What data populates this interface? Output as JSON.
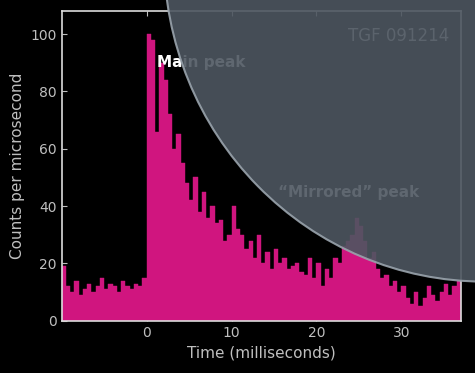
{
  "chart_data": {
    "type": "histogram",
    "title": "TGF 091214",
    "xlabel": "Time (milliseconds)",
    "ylabel": "Counts per microsecond",
    "annotations": [
      "Main peak",
      "“Mirrored” peak"
    ],
    "bins": [
      -10,
      -9.5,
      -9,
      -8.5,
      -8,
      -7.5,
      -7,
      -6.5,
      -6,
      -5.5,
      -5,
      -4.5,
      -4,
      -3.5,
      -3,
      -2.5,
      -2,
      -1.5,
      -1,
      -0.5,
      0,
      0.5,
      1,
      1.5,
      2,
      2.5,
      3,
      3.5,
      4,
      4.5,
      5,
      5.5,
      6,
      6.5,
      7,
      7.5,
      8,
      8.5,
      9,
      9.5,
      10,
      10.5,
      11,
      11.5,
      12,
      12.5,
      13,
      13.5,
      14,
      14.5,
      15,
      15.5,
      16,
      16.5,
      17,
      17.5,
      18,
      18.5,
      19,
      19.5,
      20,
      20.5,
      21,
      21.5,
      22,
      22.5,
      23,
      23.5,
      24,
      24.5,
      25,
      25.5,
      26,
      26.5,
      27,
      27.5,
      28,
      28.5,
      29,
      29.5,
      30,
      30.5,
      31,
      31.5,
      32,
      32.5,
      33,
      33.5,
      34,
      34.5,
      35,
      35.5,
      36,
      36.5,
      37
    ],
    "counts": [
      19,
      12,
      10,
      14,
      9,
      11,
      13,
      10,
      12,
      15,
      11,
      13,
      12,
      10,
      14,
      12,
      11,
      13,
      12,
      15,
      100,
      98,
      66,
      90,
      84,
      72,
      60,
      65,
      55,
      48,
      42,
      50,
      38,
      45,
      36,
      40,
      34,
      35,
      28,
      30,
      40,
      32,
      30,
      25,
      28,
      22,
      30,
      20,
      24,
      18,
      25,
      20,
      22,
      18,
      19,
      20,
      17,
      16,
      22,
      15,
      20,
      12,
      18,
      15,
      22,
      20,
      26,
      28,
      30,
      36,
      33,
      28,
      22,
      24,
      18,
      15,
      16,
      12,
      14,
      10,
      12,
      8,
      6,
      10,
      5,
      8,
      12,
      9,
      7,
      10,
      13,
      9,
      12,
      14
    ],
    "color": "#d0157f",
    "xlim": [
      -10,
      37
    ],
    "xticks": [
      0,
      10,
      20,
      30
    ],
    "ylim": [
      0,
      108
    ],
    "yticks": [
      0,
      20,
      40,
      60,
      80,
      100
    ],
    "grid": false
  }
}
